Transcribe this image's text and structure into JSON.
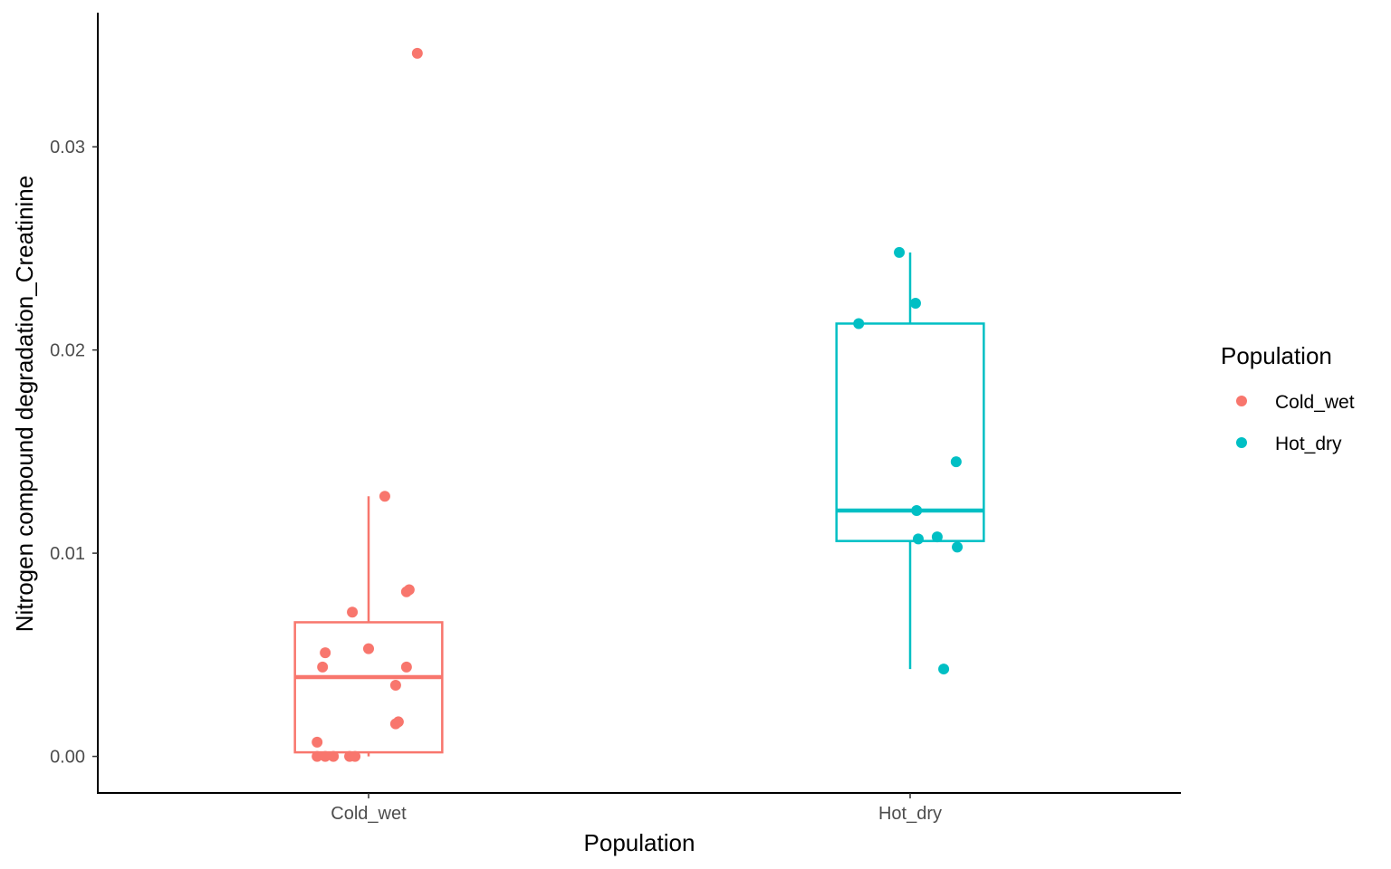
{
  "chart_data": {
    "type": "boxplot",
    "title": "",
    "xlabel": "Population",
    "ylabel": "Nitrogen compound degradation_Creatinine",
    "categories": [
      "Cold_wet",
      "Hot_dry"
    ],
    "ylim": [
      -0.0018,
      0.0366
    ],
    "yticks": [
      0.0,
      0.01,
      0.02,
      0.03
    ],
    "ytick_labels": [
      "0.00",
      "0.01",
      "0.02",
      "0.03"
    ],
    "grid": false,
    "legend": {
      "title": "Population",
      "position": "right",
      "entries": [
        {
          "label": "Cold_wet",
          "color": "#F8766D"
        },
        {
          "label": "Hot_dry",
          "color": "#00BFC4"
        }
      ]
    },
    "series": [
      {
        "name": "Cold_wet",
        "color": "#F8766D",
        "box": {
          "whisker_low": 0.0,
          "q1": 0.0002,
          "median": 0.0039,
          "q3": 0.0066,
          "whisker_high": 0.0128
        },
        "points": [
          {
            "jitter": 0.09,
            "y": 0.0346
          },
          {
            "jitter": 0.03,
            "y": 0.0128
          },
          {
            "jitter": 0.07,
            "y": 0.0081
          },
          {
            "jitter": 0.075,
            "y": 0.0082
          },
          {
            "jitter": -0.03,
            "y": 0.0071
          },
          {
            "jitter": -0.08,
            "y": 0.0051
          },
          {
            "jitter": 0.0,
            "y": 0.0053
          },
          {
            "jitter": -0.085,
            "y": 0.0044
          },
          {
            "jitter": 0.07,
            "y": 0.0044
          },
          {
            "jitter": 0.05,
            "y": 0.0035
          },
          {
            "jitter": 0.05,
            "y": 0.0016
          },
          {
            "jitter": 0.055,
            "y": 0.0017
          },
          {
            "jitter": -0.095,
            "y": 0.0007
          },
          {
            "jitter": -0.095,
            "y": 0.0
          },
          {
            "jitter": -0.08,
            "y": 0.0
          },
          {
            "jitter": -0.065,
            "y": 0.0
          },
          {
            "jitter": -0.035,
            "y": 0.0
          },
          {
            "jitter": -0.025,
            "y": 0.0
          }
        ]
      },
      {
        "name": "Hot_dry",
        "color": "#00BFC4",
        "box": {
          "whisker_low": 0.0043,
          "q1": 0.0106,
          "median": 0.0121,
          "q3": 0.0213,
          "whisker_high": 0.0248
        },
        "points": [
          {
            "jitter": -0.02,
            "y": 0.0248
          },
          {
            "jitter": 0.01,
            "y": 0.0223
          },
          {
            "jitter": -0.095,
            "y": 0.0213
          },
          {
            "jitter": 0.085,
            "y": 0.0145
          },
          {
            "jitter": 0.012,
            "y": 0.0121
          },
          {
            "jitter": 0.05,
            "y": 0.0108
          },
          {
            "jitter": 0.015,
            "y": 0.0107
          },
          {
            "jitter": 0.087,
            "y": 0.0103
          },
          {
            "jitter": 0.062,
            "y": 0.0043
          }
        ]
      }
    ]
  }
}
